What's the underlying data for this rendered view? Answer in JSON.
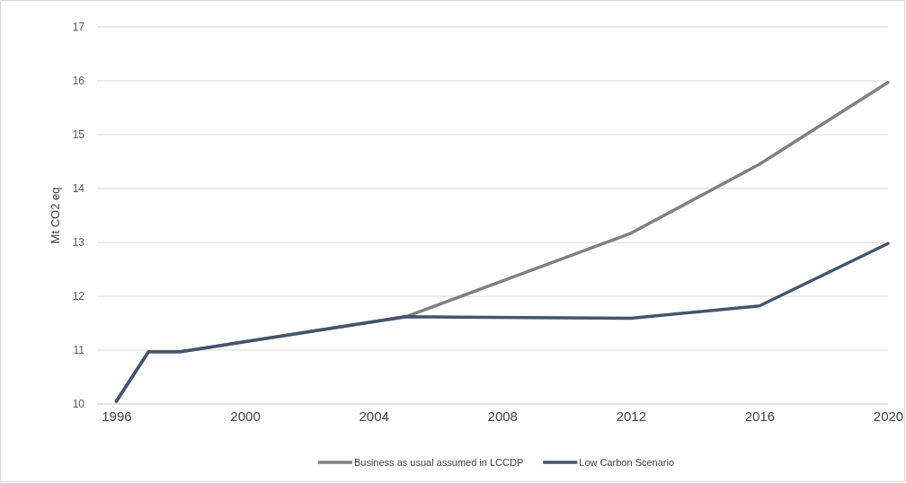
{
  "chart_data": {
    "type": "line",
    "ylabel": "Mt CO2 eq",
    "xlim": [
      1995.4,
      2020
    ],
    "xticks": [
      1996,
      2000,
      2004,
      2008,
      2012,
      2016,
      2020
    ],
    "ylim": [
      10,
      17
    ],
    "yticks": [
      10,
      11,
      12,
      13,
      14,
      15,
      16,
      17
    ],
    "grid": "y",
    "legend": "bottom",
    "marker": "none",
    "line_style": "solid",
    "series": [
      {
        "name": "Business as usual assumed in LCCDP",
        "color": "#808080",
        "x": [
          1996,
          1997,
          1998,
          2005,
          2012,
          2016,
          2020
        ],
        "values": [
          10.05,
          10.97,
          10.97,
          11.62,
          13.17,
          14.45,
          15.97
        ]
      },
      {
        "name": "Low Carbon Scenario",
        "color": "#44546a",
        "x": [
          1996,
          1997,
          1998,
          2005,
          2012,
          2016,
          2020
        ],
        "values": [
          10.05,
          10.97,
          10.97,
          11.62,
          11.59,
          11.82,
          12.98
        ]
      }
    ]
  }
}
